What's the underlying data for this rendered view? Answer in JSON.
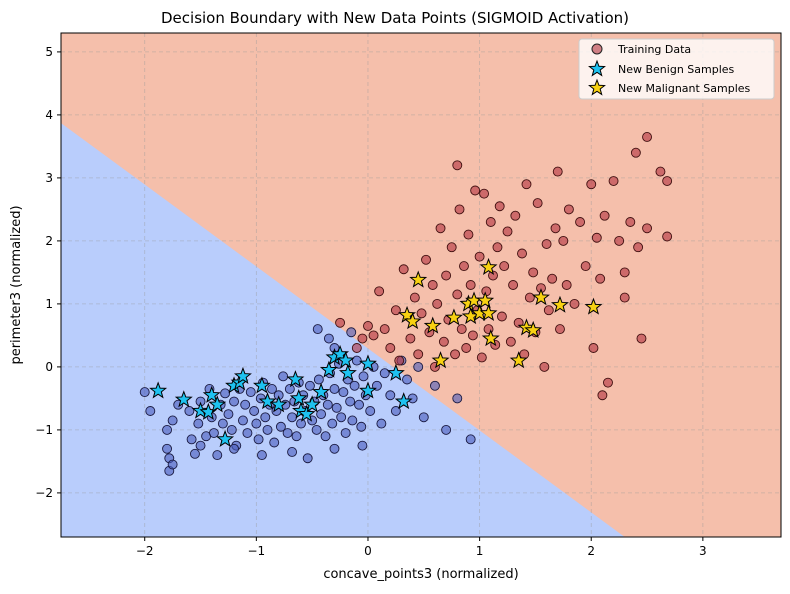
{
  "chart_data": {
    "type": "scatter",
    "title": "Decision Boundary with New Data Points (SIGMOID Activation)",
    "xlabel": "concave_points3 (normalized)",
    "ylabel": "perimeter3 (normalized)",
    "xlim": [
      -2.75,
      3.7
    ],
    "ylim": [
      -2.7,
      5.3
    ],
    "x_ticks": [
      -2,
      -1,
      0,
      1,
      2,
      3
    ],
    "y_ticks": [
      -2,
      -1,
      0,
      1,
      2,
      3,
      4,
      5
    ],
    "grid": true,
    "legend_position": "top-right",
    "colors": {
      "benign_region": "#b9cdfc",
      "malignant_region": "#f5bfab",
      "training_benign": "#4a5bbd",
      "training_malignant": "#b2323f",
      "new_benign": "#1ec2f0",
      "new_malignant": "#f8d112"
    },
    "decision_boundary": {
      "points": [
        [
          -2.75,
          3.87
        ],
        [
          2.3,
          -2.7
        ]
      ]
    },
    "legend": [
      {
        "label": "Training Data",
        "marker": "circle"
      },
      {
        "label": "New Benign Samples",
        "marker": "star"
      },
      {
        "label": "New Malignant Samples",
        "marker": "star"
      }
    ],
    "series": [
      {
        "name": "New Benign Samples",
        "points": [
          [
            -1.88,
            -0.38
          ],
          [
            -1.65,
            -0.52
          ],
          [
            -1.5,
            -0.7
          ],
          [
            -1.43,
            -0.72
          ],
          [
            -1.4,
            -0.45
          ],
          [
            -1.35,
            -0.6
          ],
          [
            -1.28,
            -1.15
          ],
          [
            -1.2,
            -0.3
          ],
          [
            -1.15,
            -0.25
          ],
          [
            -1.12,
            -0.15
          ],
          [
            -0.95,
            -0.3
          ],
          [
            -0.9,
            -0.55
          ],
          [
            -0.8,
            -0.6
          ],
          [
            -0.65,
            -0.2
          ],
          [
            -0.62,
            -0.5
          ],
          [
            -0.6,
            -0.7
          ],
          [
            -0.55,
            -0.75
          ],
          [
            -0.5,
            -0.6
          ],
          [
            -0.42,
            -0.4
          ],
          [
            -0.35,
            -0.05
          ],
          [
            -0.3,
            0.15
          ],
          [
            -0.25,
            0.2
          ],
          [
            -0.2,
            0.1
          ],
          [
            -0.18,
            -0.1
          ],
          [
            0.0,
            0.05
          ],
          [
            0.0,
            -0.38
          ],
          [
            0.25,
            -0.1
          ],
          [
            0.32,
            -0.55
          ]
        ]
      },
      {
        "name": "New Malignant Samples",
        "points": [
          [
            0.35,
            0.82
          ],
          [
            0.4,
            0.72
          ],
          [
            0.45,
            1.38
          ],
          [
            0.58,
            0.65
          ],
          [
            0.65,
            0.1
          ],
          [
            0.77,
            0.78
          ],
          [
            0.9,
            1.0
          ],
          [
            0.92,
            0.8
          ],
          [
            0.95,
            1.05
          ],
          [
            1.0,
            0.85
          ],
          [
            1.05,
            1.05
          ],
          [
            1.08,
            0.85
          ],
          [
            1.08,
            1.58
          ],
          [
            1.1,
            0.45
          ],
          [
            1.35,
            0.1
          ],
          [
            1.42,
            0.62
          ],
          [
            1.48,
            0.58
          ],
          [
            1.55,
            1.1
          ],
          [
            1.72,
            0.98
          ],
          [
            2.02,
            0.95
          ]
        ]
      }
    ],
    "training_data": {
      "benign": [
        [
          -1.8,
          -1.0
        ],
        [
          -1.8,
          -1.3
        ],
        [
          -1.78,
          -1.45
        ],
        [
          -1.78,
          -1.65
        ],
        [
          -1.75,
          -0.85
        ],
        [
          -1.7,
          -0.6
        ],
        [
          -1.6,
          -0.7
        ],
        [
          -1.58,
          -1.15
        ],
        [
          -1.55,
          -1.38
        ],
        [
          -1.52,
          -0.9
        ],
        [
          -1.5,
          -0.55
        ],
        [
          -1.45,
          -1.1
        ],
        [
          -1.42,
          -0.35
        ],
        [
          -1.4,
          -0.8
        ],
        [
          -1.38,
          -1.05
        ],
        [
          -1.35,
          -1.4
        ],
        [
          -1.32,
          -0.6
        ],
        [
          -1.3,
          -0.9
        ],
        [
          -1.28,
          -0.42
        ],
        [
          -1.25,
          -0.75
        ],
        [
          -1.22,
          -1.0
        ],
        [
          -1.2,
          -0.55
        ],
        [
          -1.18,
          -1.25
        ],
        [
          -1.15,
          -0.35
        ],
        [
          -1.12,
          -0.85
        ],
        [
          -1.1,
          -0.6
        ],
        [
          -1.08,
          -1.05
        ],
        [
          -1.05,
          -0.4
        ],
        [
          -1.02,
          -0.7
        ],
        [
          -1.0,
          -0.9
        ],
        [
          -0.98,
          -1.15
        ],
        [
          -0.96,
          -0.5
        ],
        [
          -0.94,
          -0.25
        ],
        [
          -0.92,
          -0.8
        ],
        [
          -0.9,
          -1.0
        ],
        [
          -0.88,
          -0.6
        ],
        [
          -0.86,
          -0.35
        ],
        [
          -0.84,
          -1.2
        ],
        [
          -0.82,
          -0.7
        ],
        [
          -0.8,
          -0.45
        ],
        [
          -0.78,
          -0.95
        ],
        [
          -0.76,
          -0.15
        ],
        [
          -0.74,
          -0.6
        ],
        [
          -0.72,
          -1.05
        ],
        [
          -0.7,
          -0.35
        ],
        [
          -0.68,
          -0.8
        ],
        [
          -0.66,
          -0.55
        ],
        [
          -0.64,
          -1.1
        ],
        [
          -0.62,
          -0.25
        ],
        [
          -0.6,
          -0.9
        ],
        [
          -0.58,
          -0.45
        ],
        [
          -0.56,
          -0.7
        ],
        [
          -0.54,
          -1.45
        ],
        [
          -0.52,
          -0.3
        ],
        [
          -0.5,
          -0.85
        ],
        [
          -0.48,
          -0.55
        ],
        [
          -0.46,
          -1.0
        ],
        [
          -0.44,
          -0.2
        ],
        [
          -0.42,
          -0.75
        ],
        [
          -0.4,
          -0.45
        ],
        [
          -0.38,
          -1.1
        ],
        [
          -0.36,
          -0.6
        ],
        [
          -0.34,
          -0.1
        ],
        [
          -0.32,
          -0.9
        ],
        [
          -0.3,
          -0.35
        ],
        [
          -0.28,
          -0.65
        ],
        [
          -0.26,
          0.05
        ],
        [
          -0.24,
          -0.8
        ],
        [
          -0.22,
          -0.4
        ],
        [
          -0.2,
          -1.05
        ],
        [
          -0.18,
          -0.2
        ],
        [
          -0.16,
          -0.55
        ],
        [
          -0.14,
          -0.85
        ],
        [
          -0.12,
          -0.3
        ],
        [
          -0.1,
          0.1
        ],
        [
          -0.08,
          -0.6
        ],
        [
          -0.06,
          -0.95
        ],
        [
          -0.04,
          -0.15
        ],
        [
          -0.02,
          -0.45
        ],
        [
          0.02,
          -0.7
        ],
        [
          0.05,
          0.0
        ],
        [
          0.08,
          -0.3
        ],
        [
          0.12,
          -0.9
        ],
        [
          0.15,
          -0.1
        ],
        [
          0.2,
          -0.45
        ],
        [
          0.25,
          -0.7
        ],
        [
          0.3,
          0.1
        ],
        [
          0.35,
          -0.2
        ],
        [
          0.4,
          -0.5
        ],
        [
          0.45,
          0.0
        ],
        [
          0.5,
          -0.8
        ],
        [
          0.6,
          -0.3
        ],
        [
          0.7,
          -1.0
        ],
        [
          0.8,
          -0.5
        ],
        [
          0.92,
          -1.15
        ],
        [
          -2.0,
          -0.4
        ],
        [
          -1.95,
          -0.7
        ],
        [
          -0.45,
          0.6
        ],
        [
          -0.35,
          0.45
        ],
        [
          -0.3,
          0.3
        ],
        [
          -0.15,
          0.55
        ],
        [
          -1.75,
          -1.55
        ],
        [
          -1.5,
          -1.25
        ],
        [
          -1.2,
          -1.3
        ],
        [
          -0.95,
          -1.4
        ],
        [
          -0.68,
          -1.35
        ],
        [
          -0.3,
          -1.3
        ],
        [
          -0.05,
          -1.25
        ]
      ],
      "malignant": [
        [
          0.05,
          0.5
        ],
        [
          0.1,
          1.2
        ],
        [
          0.15,
          0.6
        ],
        [
          0.2,
          0.3
        ],
        [
          0.25,
          0.9
        ],
        [
          0.28,
          0.1
        ],
        [
          0.32,
          1.55
        ],
        [
          0.38,
          0.45
        ],
        [
          0.42,
          1.1
        ],
        [
          0.45,
          0.2
        ],
        [
          0.48,
          0.85
        ],
        [
          0.52,
          1.7
        ],
        [
          0.55,
          0.55
        ],
        [
          0.58,
          1.3
        ],
        [
          0.6,
          0.0
        ],
        [
          0.62,
          1.0
        ],
        [
          0.65,
          2.2
        ],
        [
          0.68,
          0.4
        ],
        [
          0.7,
          1.45
        ],
        [
          0.72,
          0.75
        ],
        [
          0.75,
          1.9
        ],
        [
          0.78,
          0.2
        ],
        [
          0.8,
          1.15
        ],
        [
          0.82,
          2.5
        ],
        [
          0.84,
          0.6
        ],
        [
          0.86,
          1.6
        ],
        [
          0.88,
          0.3
        ],
        [
          0.9,
          2.1
        ],
        [
          0.92,
          1.3
        ],
        [
          0.94,
          0.5
        ],
        [
          0.96,
          2.8
        ],
        [
          0.98,
          0.9
        ],
        [
          1.0,
          1.75
        ],
        [
          1.02,
          0.15
        ],
        [
          1.04,
          2.75
        ],
        [
          1.06,
          1.2
        ],
        [
          1.08,
          0.6
        ],
        [
          1.1,
          2.3
        ],
        [
          1.12,
          1.45
        ],
        [
          1.14,
          0.35
        ],
        [
          1.16,
          1.9
        ],
        [
          1.18,
          2.55
        ],
        [
          1.2,
          0.8
        ],
        [
          1.22,
          1.6
        ],
        [
          1.25,
          2.15
        ],
        [
          1.28,
          0.4
        ],
        [
          1.3,
          1.3
        ],
        [
          1.32,
          2.4
        ],
        [
          1.35,
          0.7
        ],
        [
          1.38,
          1.8
        ],
        [
          1.4,
          0.2
        ],
        [
          1.42,
          2.9
        ],
        [
          1.45,
          1.1
        ],
        [
          1.48,
          1.5
        ],
        [
          1.5,
          0.55
        ],
        [
          1.52,
          2.6
        ],
        [
          1.55,
          1.25
        ],
        [
          1.58,
          0.0
        ],
        [
          1.6,
          1.95
        ],
        [
          1.62,
          0.9
        ],
        [
          1.65,
          1.4
        ],
        [
          1.68,
          2.2
        ],
        [
          1.7,
          3.1
        ],
        [
          1.72,
          0.6
        ],
        [
          1.75,
          2.0
        ],
        [
          1.78,
          1.3
        ],
        [
          1.8,
          2.5
        ],
        [
          1.85,
          1.0
        ],
        [
          1.9,
          2.3
        ],
        [
          1.95,
          1.6
        ],
        [
          2.0,
          2.9
        ],
        [
          2.02,
          0.3
        ],
        [
          2.05,
          2.05
        ],
        [
          2.08,
          1.4
        ],
        [
          2.1,
          -0.45
        ],
        [
          2.12,
          2.4
        ],
        [
          2.15,
          -0.25
        ],
        [
          2.2,
          2.95
        ],
        [
          2.25,
          2.0
        ],
        [
          2.3,
          1.1
        ],
        [
          2.35,
          2.3
        ],
        [
          2.4,
          3.4
        ],
        [
          2.42,
          1.9
        ],
        [
          2.45,
          0.45
        ],
        [
          2.5,
          3.65
        ],
        [
          2.62,
          3.1
        ],
        [
          2.68,
          2.95
        ],
        [
          2.68,
          2.07
        ],
        [
          2.5,
          2.2
        ],
        [
          2.3,
          1.5
        ],
        [
          0.8,
          3.2
        ],
        [
          0.0,
          0.65
        ],
        [
          -0.05,
          0.45
        ],
        [
          -0.25,
          0.7
        ],
        [
          -0.1,
          0.3
        ]
      ]
    }
  }
}
